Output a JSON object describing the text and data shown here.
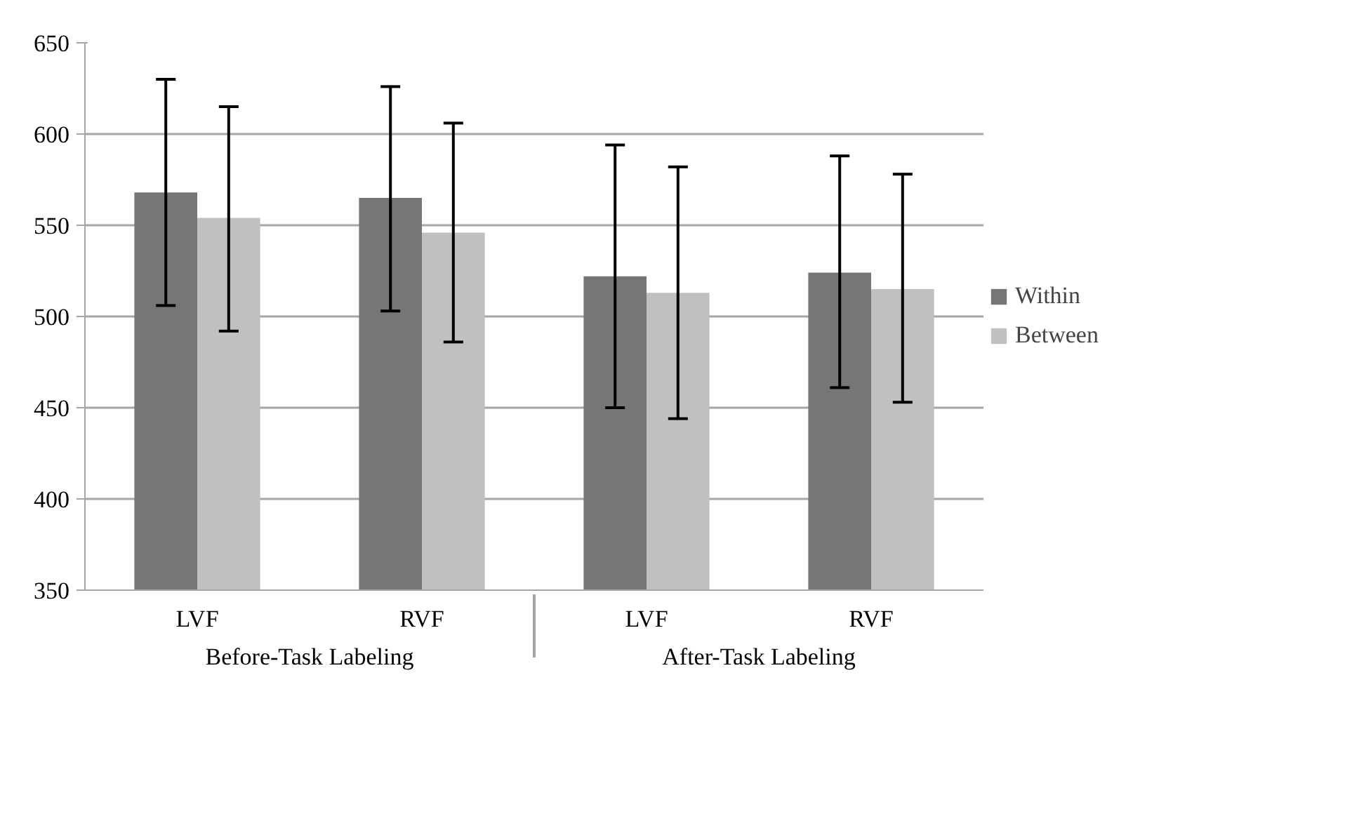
{
  "chart_data": {
    "type": "bar",
    "categories": [
      "LVF",
      "RVF",
      "LVF",
      "RVF"
    ],
    "annotations": [
      "Before-Task Labeling",
      "After-Task Labeling"
    ],
    "series": [
      {
        "name": "Within",
        "color": "#767676",
        "values": [
          568,
          565,
          522,
          524
        ],
        "errors": [
          [
            506,
            630
          ],
          [
            503,
            626
          ],
          [
            450,
            594
          ],
          [
            461,
            588
          ]
        ]
      },
      {
        "name": "Between",
        "color": "#c0c0c0",
        "values": [
          554,
          546,
          513,
          515
        ],
        "errors": [
          [
            492,
            615
          ],
          [
            486,
            606
          ],
          [
            444,
            582
          ],
          [
            453,
            578
          ]
        ]
      }
    ],
    "ylim": [
      350,
      650
    ],
    "yticks": [
      350,
      400,
      450,
      500,
      550,
      600,
      650
    ],
    "grid": "y",
    "legend": "right"
  }
}
